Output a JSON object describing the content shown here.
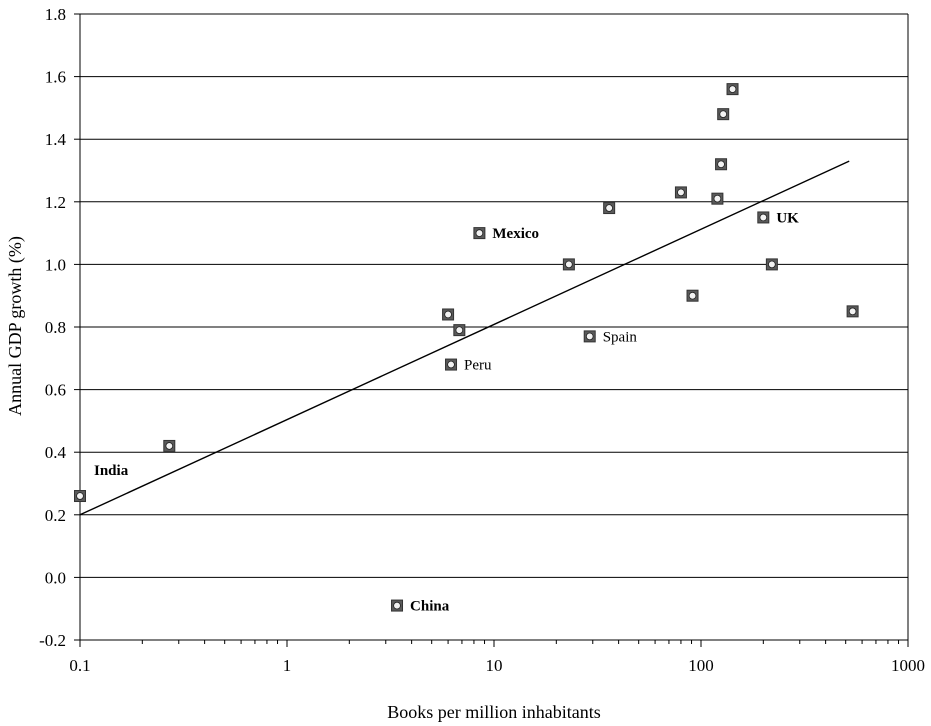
{
  "chart_data": {
    "type": "scatter",
    "xlabel": "Books per million inhabitants",
    "ylabel": "Annual GDP growth (%)",
    "xscale": "log",
    "xlim": [
      0.1,
      1000
    ],
    "ylim": [
      -0.2,
      1.8
    ],
    "xticks": [
      "0.1",
      "1",
      "10",
      "100",
      "1000"
    ],
    "yticks": [
      "-0.2",
      "0.0",
      "0.2",
      "0.4",
      "0.6",
      "0.8",
      "1.0",
      "1.2",
      "1.4",
      "1.6",
      "1.8"
    ],
    "grid": "horizontal",
    "points": [
      {
        "x": 0.1,
        "y": 0.26,
        "label": "India",
        "bold": true
      },
      {
        "x": 0.27,
        "y": 0.42,
        "label": ""
      },
      {
        "x": 3.4,
        "y": -0.09,
        "label": "China",
        "bold": true
      },
      {
        "x": 6.0,
        "y": 0.84,
        "label": ""
      },
      {
        "x": 6.2,
        "y": 0.68,
        "label": "Peru",
        "bold": false
      },
      {
        "x": 6.8,
        "y": 0.79,
        "label": ""
      },
      {
        "x": 8.5,
        "y": 1.1,
        "label": "Mexico",
        "bold": true
      },
      {
        "x": 23,
        "y": 1.0,
        "label": ""
      },
      {
        "x": 29,
        "y": 0.77,
        "label": "Spain",
        "bold": false
      },
      {
        "x": 36,
        "y": 1.18,
        "label": ""
      },
      {
        "x": 80,
        "y": 1.23,
        "label": ""
      },
      {
        "x": 91,
        "y": 0.9,
        "label": ""
      },
      {
        "x": 120,
        "y": 1.21,
        "label": ""
      },
      {
        "x": 125,
        "y": 1.32,
        "label": ""
      },
      {
        "x": 128,
        "y": 1.48,
        "label": ""
      },
      {
        "x": 142,
        "y": 1.56,
        "label": ""
      },
      {
        "x": 200,
        "y": 1.15,
        "label": "UK",
        "bold": true
      },
      {
        "x": 220,
        "y": 1.0,
        "label": ""
      },
      {
        "x": 540,
        "y": 0.85,
        "label": ""
      }
    ],
    "trendline": {
      "type": "log-linear",
      "x_start": 0.1,
      "y_start": 0.2,
      "x_end": 520,
      "y_end": 1.33
    }
  }
}
